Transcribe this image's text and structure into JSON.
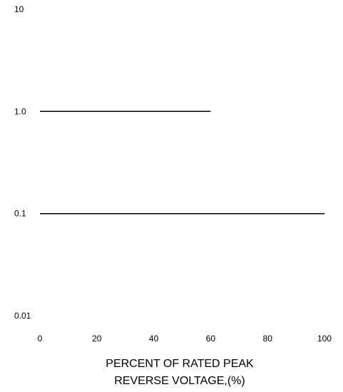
{
  "chart_data": {
    "type": "line",
    "title": "",
    "xlabel_lines": [
      "PERCENT OF RATED PEAK",
      "REVERSE VOLTAGE,(%)"
    ],
    "ylabel": "",
    "x_scale": "linear",
    "y_scale": "log",
    "xlim": [
      0,
      100
    ],
    "ylim": [
      0.01,
      10
    ],
    "x_ticks": [
      "0",
      "20",
      "40",
      "60",
      "80",
      "100"
    ],
    "y_ticks": [
      "10",
      "1.0",
      "0.1",
      "0.01"
    ],
    "grid": false,
    "legend": "none",
    "series": [
      {
        "x": [
          0,
          60
        ],
        "y": [
          1.0,
          1.0
        ]
      },
      {
        "x": [
          0,
          100
        ],
        "y": [
          0.1,
          0.1
        ]
      }
    ],
    "colors": {
      "line": "#000000",
      "text": "#000000",
      "background": "#ffffff"
    }
  }
}
